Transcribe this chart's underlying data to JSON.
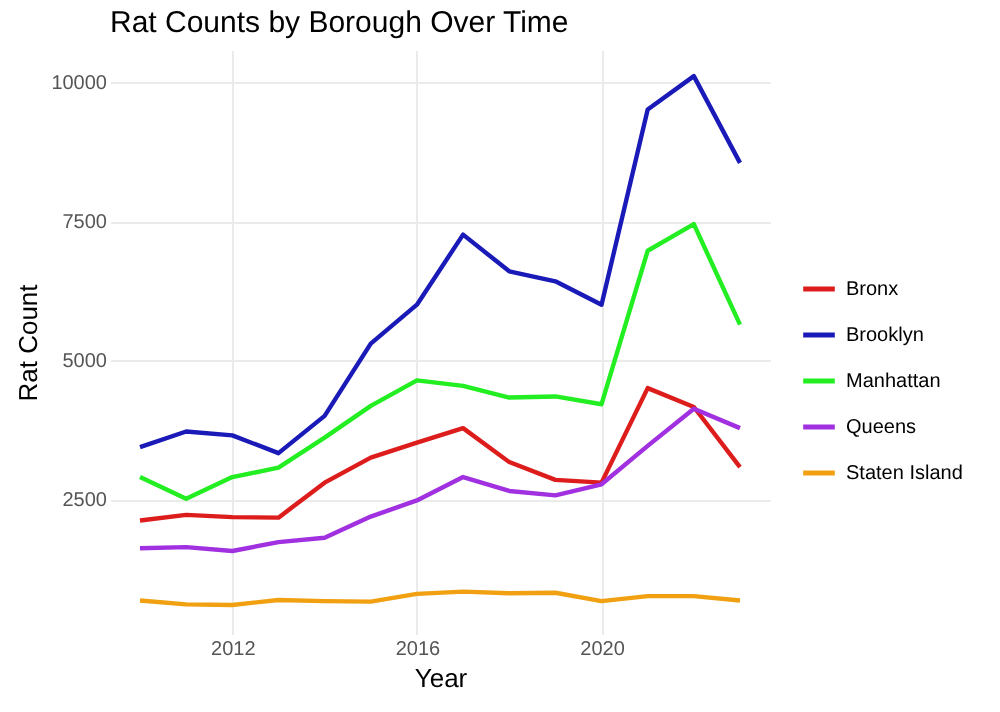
{
  "chart_data": {
    "type": "line",
    "title": "Rat Counts by Borough Over Time",
    "xlabel": "Year",
    "ylabel": "Rat Count",
    "x": [
      2010,
      2011,
      2012,
      2013,
      2014,
      2015,
      2016,
      2017,
      2018,
      2019,
      2020,
      2021,
      2022,
      2023
    ],
    "xlim": [
      2009.35,
      2023.65
    ],
    "xticks": [
      2012,
      2016,
      2020
    ],
    "ylim": [
      78,
      10580
    ],
    "yticks": [
      2500,
      5000,
      7500,
      10000
    ],
    "grid": true,
    "legend": "right",
    "line_style": "solid",
    "series": [
      {
        "name": "Bronx",
        "color": "#dd1c1c",
        "values": [
          2120,
          2220,
          2180,
          2170,
          2800,
          3250,
          3520,
          3780,
          3170,
          2850,
          2800,
          4500,
          4160,
          3080
        ]
      },
      {
        "name": "Brooklyn",
        "color": "#1a1ab8",
        "values": [
          3440,
          3720,
          3650,
          3330,
          4000,
          5300,
          6000,
          7260,
          6600,
          6420,
          6000,
          9510,
          10110,
          8550
        ]
      },
      {
        "name": "Manhattan",
        "color": "#22ee22",
        "values": [
          2900,
          2510,
          2900,
          3070,
          3610,
          4180,
          4640,
          4540,
          4330,
          4350,
          4210,
          6970,
          7450,
          5640
        ]
      },
      {
        "name": "Queens",
        "color": "#a030e0",
        "values": [
          1620,
          1640,
          1570,
          1730,
          1810,
          2190,
          2480,
          2900,
          2650,
          2570,
          2770,
          3460,
          4130,
          3780
        ]
      },
      {
        "name": "Staten Island",
        "color": "#f0a010",
        "values": [
          680,
          610,
          600,
          690,
          670,
          660,
          800,
          840,
          810,
          820,
          670,
          760,
          760,
          680
        ]
      }
    ]
  }
}
